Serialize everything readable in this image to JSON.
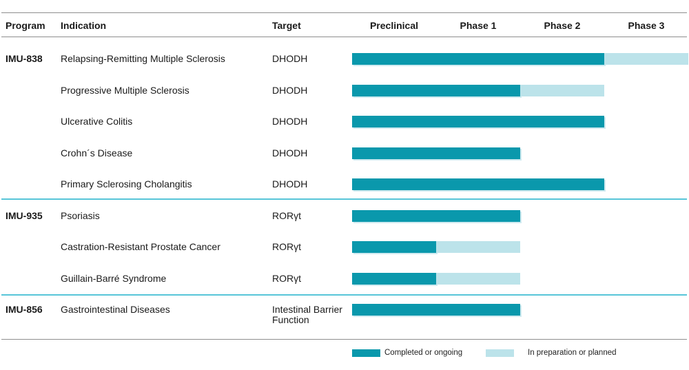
{
  "table": {
    "columns": {
      "program": "Program",
      "indication": "Indication",
      "target": "Target"
    },
    "phases": [
      "Preclinical",
      "Phase 1",
      "Phase 2",
      "Phase 3"
    ]
  },
  "rows": [
    {
      "program": "IMU-838",
      "indication": "Relapsing-Remitting Multiple Sclerosis",
      "target": "DHODH",
      "completed_phases": 3,
      "planned_phases": 1
    },
    {
      "program": "",
      "indication": "Progressive Multiple Sclerosis",
      "target": "DHODH",
      "completed_phases": 2,
      "planned_phases": 1
    },
    {
      "program": "",
      "indication": "Ulcerative Colitis",
      "target": "DHODH",
      "completed_phases": 3,
      "planned_phases": 0
    },
    {
      "program": "",
      "indication": "Crohn´s Disease",
      "target": "DHODH",
      "completed_phases": 2,
      "planned_phases": 0
    },
    {
      "program": "",
      "indication": "Primary Sclerosing Cholangitis",
      "target": "DHODH",
      "completed_phases": 3,
      "planned_phases": 0
    },
    {
      "program": "IMU-935",
      "indication": "Psoriasis",
      "target": "RORγt",
      "completed_phases": 2,
      "planned_phases": 0
    },
    {
      "program": "",
      "indication": "Castration-Resistant Prostate Cancer",
      "target": "RORγt",
      "completed_phases": 1,
      "planned_phases": 1
    },
    {
      "program": "",
      "indication": "Guillain-Barré Syndrome",
      "target": "RORγt",
      "completed_phases": 1,
      "planned_phases": 1
    },
    {
      "program": "IMU-856",
      "indication": "Gastrointestinal Diseases",
      "target": "Intestinal Barrier Function",
      "completed_phases": 2,
      "planned_phases": 0
    }
  ],
  "legend": {
    "completed": "Completed or ongoing",
    "planned": "In preparation or planned"
  },
  "colors": {
    "completed": "#0a98ac",
    "planned": "#bce3ea",
    "divider": "#57c5d8"
  },
  "chart_data": {
    "type": "bar",
    "orientation": "horizontal",
    "title": "Clinical development pipeline",
    "categories": [
      "Relapsing-Remitting Multiple Sclerosis",
      "Progressive Multiple Sclerosis",
      "Ulcerative Colitis",
      "Crohn´s Disease",
      "Primary Sclerosing Cholangitis",
      "Psoriasis",
      "Castration-Resistant Prostate Cancer",
      "Guillain-Barré Syndrome",
      "Gastrointestinal Diseases"
    ],
    "series": [
      {
        "name": "Completed or ongoing",
        "values": [
          3,
          2,
          3,
          2,
          3,
          2,
          1,
          1,
          2
        ]
      },
      {
        "name": "In preparation or planned",
        "values": [
          1,
          1,
          0,
          0,
          0,
          0,
          1,
          1,
          0
        ]
      }
    ],
    "x_tick_labels": [
      "Preclinical",
      "Phase 1",
      "Phase 2",
      "Phase 3"
    ],
    "xlim": [
      0,
      4
    ],
    "units": "development phases reached",
    "grid": false,
    "legend_position": "bottom"
  }
}
